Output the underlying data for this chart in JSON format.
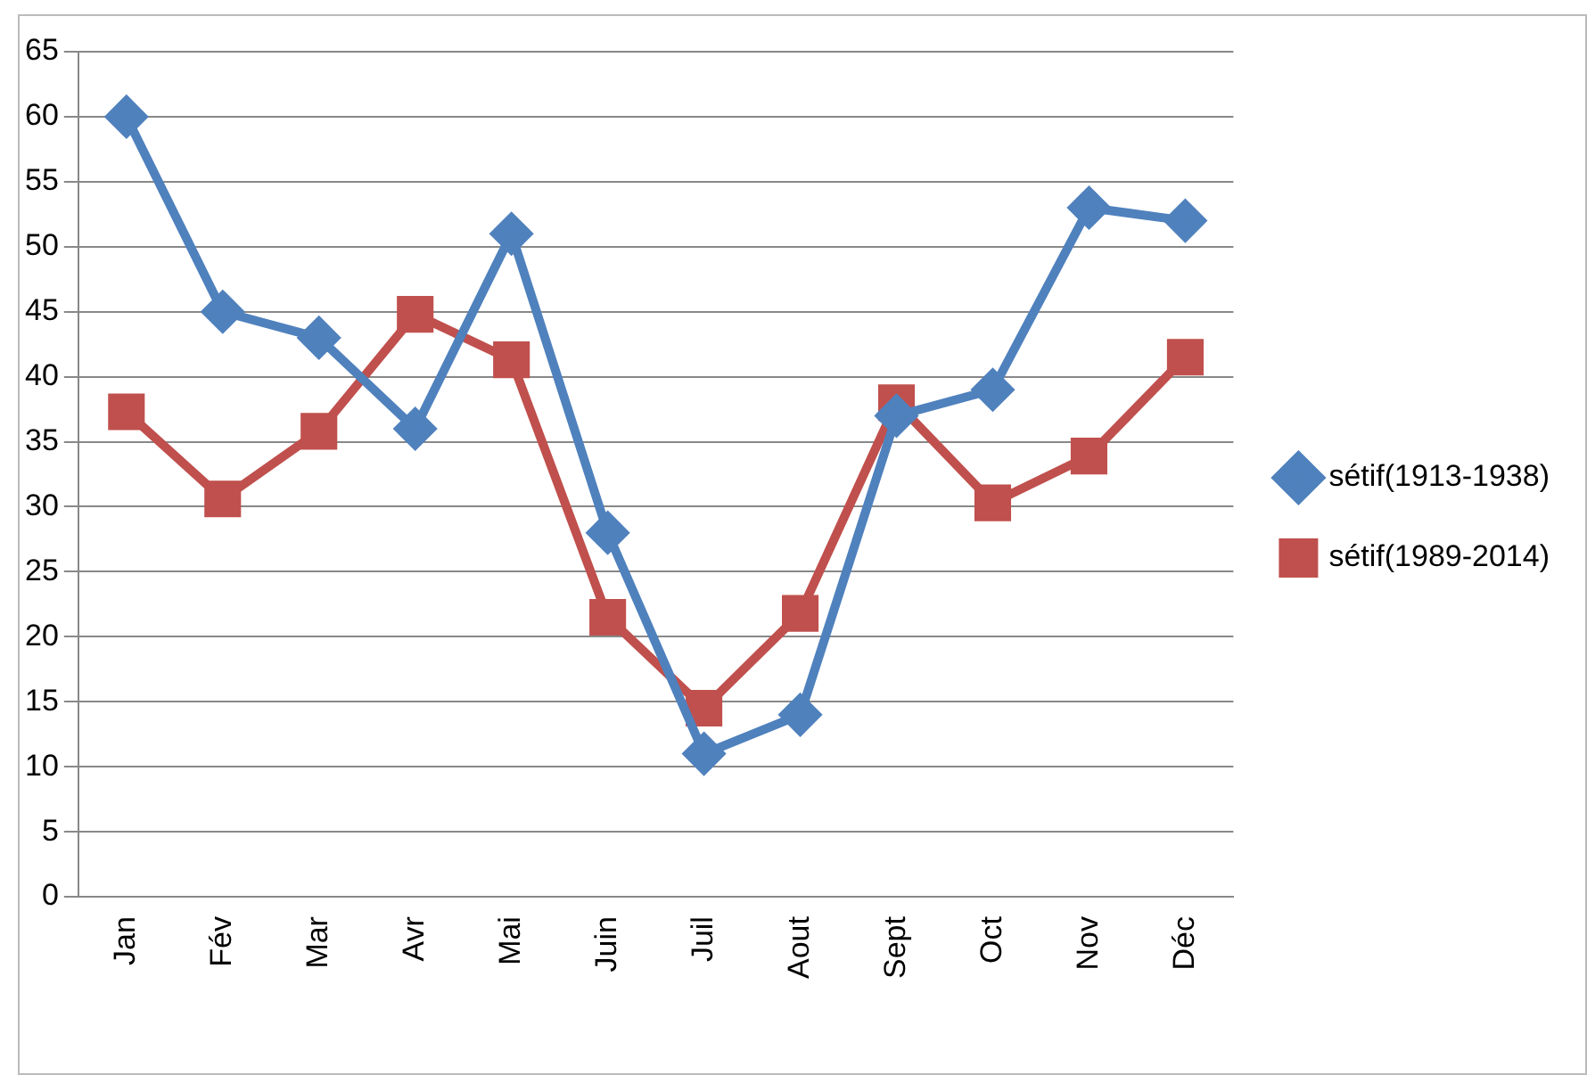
{
  "chart_data": {
    "type": "line",
    "categories": [
      "Jan",
      "Fév",
      "Mar",
      "Avr",
      "Mai",
      "Juin",
      "Juil",
      "Aout",
      "Sept",
      "Oct",
      "Nov",
      "Déc"
    ],
    "series": [
      {
        "name": "sétif(1913-1938)",
        "color": "#4f81bd",
        "marker": "diamond",
        "values": [
          60,
          45,
          43,
          36,
          51,
          28,
          11,
          14,
          37,
          39,
          53,
          52
        ]
      },
      {
        "name": "sétif(1989-2014)",
        "color": "#c0504d",
        "marker": "square",
        "values": [
          37.3,
          30.6,
          35.8,
          44.8,
          41.3,
          21.5,
          14.5,
          21.8,
          38,
          30.3,
          33.9,
          41.5
        ]
      }
    ],
    "ylim": [
      0,
      65
    ],
    "yticks": [
      0,
      5,
      10,
      15,
      20,
      25,
      30,
      35,
      40,
      45,
      50,
      55,
      60,
      65
    ],
    "grid": "y",
    "legend": "right",
    "line_style": "solid"
  }
}
